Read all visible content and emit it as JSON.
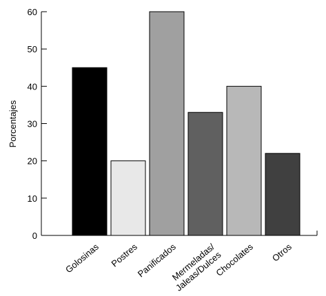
{
  "chart_data": {
    "type": "bar",
    "title": "",
    "xlabel": "",
    "ylabel": "Porcentajes",
    "ylim": [
      0,
      60
    ],
    "yticks": [
      0,
      10,
      20,
      30,
      40,
      50,
      60
    ],
    "grid": false,
    "categories": [
      "Golosinas",
      "Postres",
      "Panificados",
      "Mermeladas/ Jaleas/Dulces",
      "Chocolates",
      "Otros"
    ],
    "category_lines": [
      [
        "Golosinas"
      ],
      [
        "Postres"
      ],
      [
        "Panificados"
      ],
      [
        "Mermeladas/",
        "Jaleas/Dulces"
      ],
      [
        "Chocolates"
      ],
      [
        "Otros"
      ]
    ],
    "values": [
      45,
      20,
      60,
      33,
      40,
      22
    ],
    "colors": [
      "#000000",
      "#e8e8e8",
      "#a0a0a0",
      "#606060",
      "#b8b8b8",
      "#404040"
    ]
  }
}
